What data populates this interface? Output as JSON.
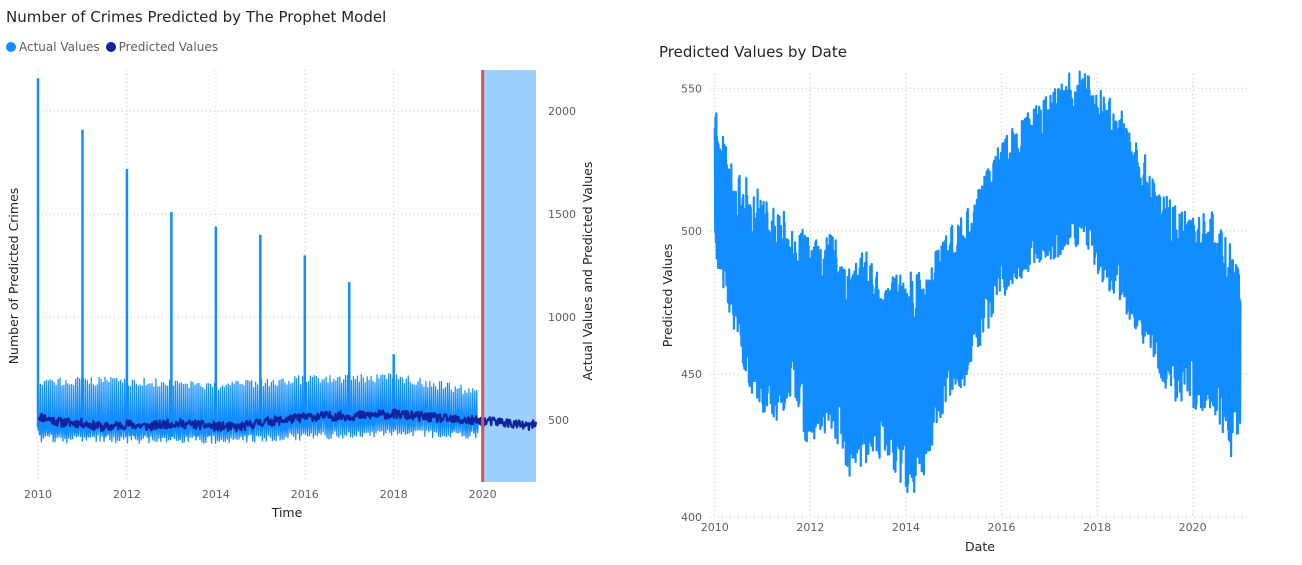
{
  "colors": {
    "actual": "#118dff",
    "predicted": "#12239e",
    "forecast_band": "#9dcfff",
    "cutoff_line": "#d9534f",
    "grid": "#c8c6c4"
  },
  "legend": [
    {
      "label": "Actual Values",
      "color": "#118dff"
    },
    {
      "label": "Predicted Values",
      "color": "#12239e"
    }
  ],
  "chart_data": [
    {
      "type": "line",
      "title": "Number of Crimes Predicted by The Prophet Model",
      "xlabel": "Time",
      "ylabel": "Number of Predicted Crimes",
      "ylabel_secondary": "Actual Values and Predicted Values",
      "x_ticks": [
        "2010",
        "2012",
        "2014",
        "2016",
        "2018",
        "2020"
      ],
      "y_secondary_ticks": [
        "2000",
        "1500",
        "1000",
        "500"
      ],
      "xlim": [
        2010,
        2021.2
      ],
      "ylim": [
        200,
        2200
      ],
      "forecast_band": [
        2020.0,
        2021.2
      ],
      "cutoff": 2020.0,
      "series": [
        {
          "name": "Actual Values",
          "baseline": [
            [
              2010.0,
              465
            ],
            [
              2011.0,
              460
            ],
            [
              2012.0,
              460
            ],
            [
              2013.0,
              450
            ],
            [
              2014.0,
              455
            ],
            [
              2015.0,
              470
            ],
            [
              2016.0,
              495
            ],
            [
              2017.0,
              505
            ],
            [
              2018.0,
              505
            ],
            [
              2019.0,
              500
            ],
            [
              2020.0,
              475
            ]
          ],
          "band_upper": [
            [
              2010.0,
              715
            ],
            [
              2012.0,
              710
            ],
            [
              2014.0,
              690
            ],
            [
              2016.0,
              720
            ],
            [
              2018.0,
              730
            ],
            [
              2019.9,
              660
            ]
          ],
          "band_lower": [
            [
              2010.0,
              390
            ],
            [
              2012.0,
              385
            ],
            [
              2014.0,
              385
            ],
            [
              2016.0,
              400
            ],
            [
              2018.0,
              420
            ],
            [
              2019.9,
              405
            ]
          ],
          "spikes": [
            [
              2010.0,
              2160
            ],
            [
              2011.0,
              1910
            ],
            [
              2012.0,
              1720
            ],
            [
              2013.0,
              1510
            ],
            [
              2014.0,
              1440
            ],
            [
              2015.0,
              1400
            ],
            [
              2016.0,
              1300
            ],
            [
              2017.0,
              1170
            ],
            [
              2018.0,
              820
            ]
          ]
        },
        {
          "name": "Predicted Values",
          "values": [
            [
              2010.0,
              520
            ],
            [
              2010.5,
              490
            ],
            [
              2011.0,
              485
            ],
            [
              2011.5,
              465
            ],
            [
              2012.0,
              480
            ],
            [
              2012.5,
              470
            ],
            [
              2013.0,
              485
            ],
            [
              2013.5,
              480
            ],
            [
              2014.0,
              470
            ],
            [
              2014.5,
              465
            ],
            [
              2015.0,
              490
            ],
            [
              2015.5,
              500
            ],
            [
              2016.0,
              515
            ],
            [
              2016.5,
              520
            ],
            [
              2017.0,
              520
            ],
            [
              2017.5,
              525
            ],
            [
              2018.0,
              530
            ],
            [
              2018.5,
              520
            ],
            [
              2019.0,
              510
            ],
            [
              2019.5,
              500
            ],
            [
              2020.0,
              495
            ],
            [
              2020.5,
              490
            ],
            [
              2021.0,
              470
            ],
            [
              2021.2,
              480
            ]
          ]
        }
      ]
    },
    {
      "type": "line",
      "title": "Predicted Values by Date",
      "xlabel": "Date",
      "ylabel": "Predicted Values",
      "x_ticks": [
        "2010",
        "2012",
        "2014",
        "2016",
        "2018",
        "2020"
      ],
      "y_ticks": [
        "550",
        "500",
        "450",
        "400"
      ],
      "xlim": [
        2009.9,
        2021.2
      ],
      "ylim": [
        400,
        555
      ],
      "series": [
        {
          "name": "Predicted Values",
          "upper": [
            [
              2010.0,
              548
            ],
            [
              2010.4,
              520
            ],
            [
              2010.8,
              518
            ],
            [
              2011.2,
              510
            ],
            [
              2011.6,
              505
            ],
            [
              2012.0,
              498
            ],
            [
              2012.4,
              502
            ],
            [
              2012.8,
              492
            ],
            [
              2013.2,
              495
            ],
            [
              2013.6,
              482
            ],
            [
              2014.0,
              488
            ],
            [
              2014.4,
              485
            ],
            [
              2014.8,
              502
            ],
            [
              2015.2,
              505
            ],
            [
              2015.6,
              518
            ],
            [
              2016.0,
              532
            ],
            [
              2016.4,
              540
            ],
            [
              2016.8,
              545
            ],
            [
              2017.2,
              552
            ],
            [
              2017.6,
              558
            ],
            [
              2018.0,
              552
            ],
            [
              2018.4,
              548
            ],
            [
              2018.8,
              535
            ],
            [
              2019.2,
              520
            ],
            [
              2019.6,
              510
            ],
            [
              2020.0,
              505
            ],
            [
              2020.4,
              510
            ],
            [
              2020.8,
              495
            ],
            [
              2021.0,
              490
            ]
          ],
          "lower": [
            [
              2010.0,
              490
            ],
            [
              2010.4,
              465
            ],
            [
              2010.8,
              440
            ],
            [
              2011.2,
              432
            ],
            [
              2011.6,
              440
            ],
            [
              2012.0,
              422
            ],
            [
              2012.4,
              432
            ],
            [
              2012.8,
              413
            ],
            [
              2013.2,
              418
            ],
            [
              2013.6,
              422
            ],
            [
              2014.0,
              404
            ],
            [
              2014.4,
              415
            ],
            [
              2014.8,
              438
            ],
            [
              2015.2,
              445
            ],
            [
              2015.6,
              462
            ],
            [
              2016.0,
              475
            ],
            [
              2016.4,
              482
            ],
            [
              2016.8,
              488
            ],
            [
              2017.2,
              490
            ],
            [
              2017.6,
              495
            ],
            [
              2018.0,
              485
            ],
            [
              2018.4,
              475
            ],
            [
              2018.8,
              465
            ],
            [
              2019.2,
              452
            ],
            [
              2019.6,
              440
            ],
            [
              2020.0,
              438
            ],
            [
              2020.4,
              435
            ],
            [
              2020.8,
              418
            ],
            [
              2021.0,
              430
            ]
          ]
        }
      ]
    }
  ]
}
